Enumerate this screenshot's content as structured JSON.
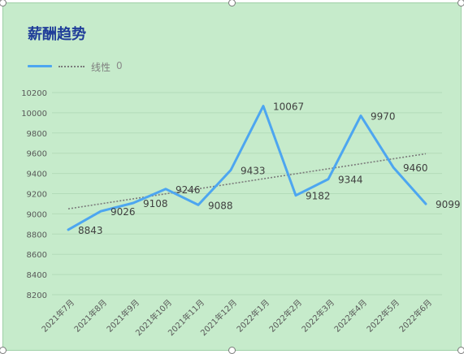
{
  "chart_data": {
    "type": "line",
    "title": "薪酬趋势",
    "categories": [
      "2021年7月",
      "2021年8月",
      "2021年9月",
      "2021年10月",
      "2021年11月",
      "2021年12月",
      "2022年1月",
      "2022年2月",
      "2022年3月",
      "2022年4月",
      "2022年5月",
      "2022年6月"
    ],
    "series": [
      {
        "values": [
          8843,
          9026,
          9108,
          9246,
          9088,
          9433,
          10067,
          9182,
          9344,
          9970,
          9460,
          9099
        ],
        "color": "#4da6f0"
      }
    ],
    "trendline": {
      "type": "linear",
      "color": "#7a7a7a"
    },
    "ylim": [
      8200,
      10200
    ],
    "yticks": [
      8200,
      8400,
      8600,
      8800,
      9000,
      9200,
      9400,
      9600,
      9800,
      10000,
      10200
    ],
    "grid": true,
    "legend_position": "top-left",
    "legend": {
      "label": "线性",
      "value": "0"
    },
    "background": "#c6ebcb",
    "title_color": "#1f3d99"
  }
}
